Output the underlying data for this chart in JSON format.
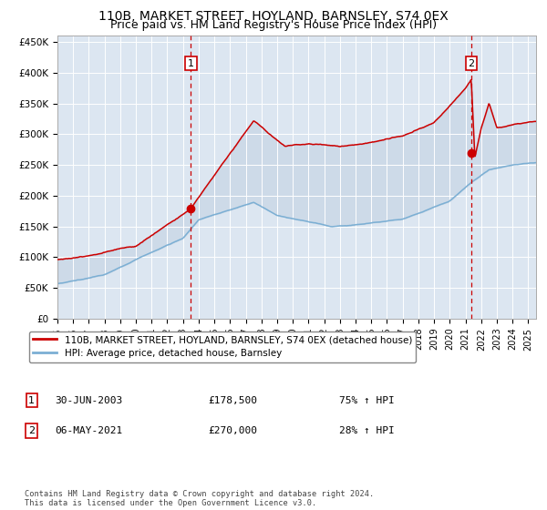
{
  "title": "110B, MARKET STREET, HOYLAND, BARNSLEY, S74 0EX",
  "subtitle": "Price paid vs. HM Land Registry's House Price Index (HPI)",
  "legend_line1": "110B, MARKET STREET, HOYLAND, BARNSLEY, S74 0EX (detached house)",
  "legend_line2": "HPI: Average price, detached house, Barnsley",
  "annotation1_label": "1",
  "annotation1_date": "30-JUN-2003",
  "annotation1_price": "£178,500",
  "annotation1_hpi": "75% ↑ HPI",
  "annotation1_year": 2003.5,
  "annotation1_value": 178500,
  "annotation2_label": "2",
  "annotation2_date": "06-MAY-2021",
  "annotation2_price": "£270,000",
  "annotation2_hpi": "28% ↑ HPI",
  "annotation2_year": 2021.37,
  "annotation2_value": 270000,
  "footer": "Contains HM Land Registry data © Crown copyright and database right 2024.\nThis data is licensed under the Open Government Licence v3.0.",
  "ylim": [
    0,
    460000
  ],
  "xlim_start": 1995.0,
  "xlim_end": 2025.5,
  "plot_bg_color": "#dce6f1",
  "red_line_color": "#cc0000",
  "blue_line_color": "#7bafd4",
  "grid_color": "#ffffff",
  "vline_color": "#cc0000",
  "title_fontsize": 10,
  "subtitle_fontsize": 9
}
